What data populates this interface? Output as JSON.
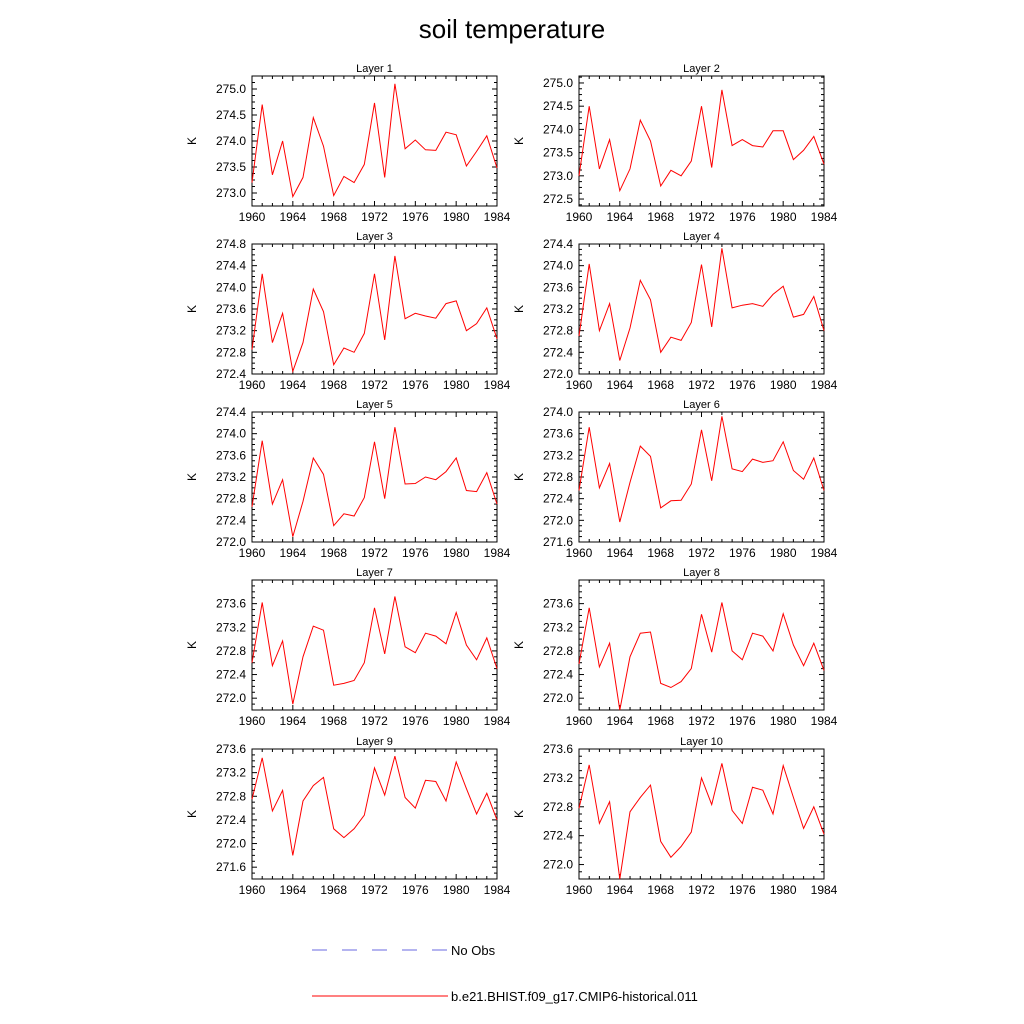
{
  "title": "soil temperature",
  "ylabel": "K",
  "legend": [
    {
      "label": "No Obs",
      "color": "#6a6ae0",
      "style": "dashed"
    },
    {
      "label": "b.e21.BHIST.f09_g17.CMIP6-historical.011",
      "color": "#ff0000",
      "style": "solid"
    }
  ],
  "chart_data": [
    {
      "type": "line",
      "title": "Layer 1",
      "xlim": [
        1960,
        1984
      ],
      "ylim": [
        272.75,
        275.25
      ],
      "xticks": [
        "1960",
        "1964",
        "1968",
        "1972",
        "1976",
        "1980",
        "1984"
      ],
      "yticks": [
        "273.0",
        "273.5",
        "274.0",
        "274.5",
        "275.0"
      ],
      "x": [
        1960,
        1961,
        1962,
        1963,
        1964,
        1965,
        1966,
        1967,
        1968,
        1969,
        1970,
        1971,
        1972,
        1973,
        1974,
        1975,
        1976,
        1977,
        1978,
        1979,
        1980,
        1981,
        1982,
        1983,
        1984
      ],
      "series": [
        {
          "name": "b.e21.BHIST.f09_g17.CMIP6-historical.011",
          "values": [
            273.2,
            274.7,
            273.35,
            274.0,
            272.93,
            273.3,
            274.45,
            273.9,
            272.95,
            273.32,
            273.2,
            273.55,
            274.73,
            273.3,
            275.1,
            273.85,
            274.02,
            273.83,
            273.82,
            274.17,
            274.12,
            273.52,
            273.8,
            274.1,
            273.48
          ]
        }
      ]
    },
    {
      "type": "line",
      "title": "Layer 2",
      "xlim": [
        1960,
        1984
      ],
      "ylim": [
        272.35,
        275.15
      ],
      "xticks": [
        "1960",
        "1964",
        "1968",
        "1972",
        "1976",
        "1980",
        "1984"
      ],
      "yticks": [
        "272.5",
        "273.0",
        "273.5",
        "274.0",
        "274.5",
        "275.0"
      ],
      "x": [
        1960,
        1961,
        1962,
        1963,
        1964,
        1965,
        1966,
        1967,
        1968,
        1969,
        1970,
        1971,
        1972,
        1973,
        1974,
        1975,
        1976,
        1977,
        1978,
        1979,
        1980,
        1981,
        1982,
        1983,
        1984
      ],
      "series": [
        {
          "name": "b.e21.BHIST.f09_g17.CMIP6-historical.011",
          "values": [
            273.0,
            274.5,
            273.15,
            273.78,
            272.68,
            273.15,
            274.2,
            273.75,
            272.78,
            273.12,
            273.0,
            273.32,
            274.5,
            273.18,
            274.85,
            273.65,
            273.78,
            273.65,
            273.62,
            273.97,
            273.97,
            273.35,
            273.55,
            273.85,
            273.25
          ]
        }
      ]
    },
    {
      "type": "line",
      "title": "Layer 3",
      "xlim": [
        1960,
        1984
      ],
      "ylim": [
        272.4,
        274.8
      ],
      "xticks": [
        "1960",
        "1964",
        "1968",
        "1972",
        "1976",
        "1980",
        "1984"
      ],
      "yticks": [
        "272.4",
        "272.8",
        "273.2",
        "273.6",
        "274.0",
        "274.4",
        "274.8"
      ],
      "x": [
        1960,
        1961,
        1962,
        1963,
        1964,
        1965,
        1966,
        1967,
        1968,
        1969,
        1970,
        1971,
        1972,
        1973,
        1974,
        1975,
        1976,
        1977,
        1978,
        1979,
        1980,
        1981,
        1982,
        1983,
        1984
      ],
      "series": [
        {
          "name": "b.e21.BHIST.f09_g17.CMIP6-historical.011",
          "values": [
            272.85,
            274.25,
            272.98,
            273.52,
            272.45,
            272.98,
            273.97,
            273.55,
            272.57,
            272.88,
            272.8,
            273.15,
            274.25,
            273.03,
            274.58,
            273.42,
            273.52,
            273.47,
            273.43,
            273.7,
            273.75,
            273.2,
            273.33,
            273.62,
            273.05
          ]
        }
      ]
    },
    {
      "type": "line",
      "title": "Layer 4",
      "xlim": [
        1960,
        1984
      ],
      "ylim": [
        272.0,
        274.4
      ],
      "xticks": [
        "1960",
        "1964",
        "1968",
        "1972",
        "1976",
        "1980",
        "1984"
      ],
      "yticks": [
        "272.0",
        "272.4",
        "272.8",
        "273.2",
        "273.6",
        "274.0",
        "274.4"
      ],
      "x": [
        1960,
        1961,
        1962,
        1963,
        1964,
        1965,
        1966,
        1967,
        1968,
        1969,
        1970,
        1971,
        1972,
        1973,
        1974,
        1975,
        1976,
        1977,
        1978,
        1979,
        1980,
        1981,
        1982,
        1983,
        1984
      ],
      "series": [
        {
          "name": "b.e21.BHIST.f09_g17.CMIP6-historical.011",
          "values": [
            272.7,
            274.03,
            272.8,
            273.3,
            272.25,
            272.85,
            273.73,
            273.37,
            272.4,
            272.68,
            272.62,
            272.95,
            274.02,
            272.87,
            274.32,
            273.22,
            273.27,
            273.3,
            273.25,
            273.47,
            273.62,
            273.05,
            273.1,
            273.43,
            272.8
          ]
        }
      ]
    },
    {
      "type": "line",
      "title": "Layer 5",
      "xlim": [
        1960,
        1984
      ],
      "ylim": [
        272.0,
        274.4
      ],
      "xticks": [
        "1960",
        "1964",
        "1968",
        "1972",
        "1976",
        "1980",
        "1984"
      ],
      "yticks": [
        "272.0",
        "272.4",
        "272.8",
        "273.2",
        "273.6",
        "274.0",
        "274.4"
      ],
      "x": [
        1960,
        1961,
        1962,
        1963,
        1964,
        1965,
        1966,
        1967,
        1968,
        1969,
        1970,
        1971,
        1972,
        1973,
        1974,
        1975,
        1976,
        1977,
        1978,
        1979,
        1980,
        1981,
        1982,
        1983,
        1984
      ],
      "series": [
        {
          "name": "b.e21.BHIST.f09_g17.CMIP6-historical.011",
          "values": [
            272.65,
            273.87,
            272.7,
            273.15,
            272.1,
            272.75,
            273.55,
            273.25,
            272.3,
            272.52,
            272.48,
            272.82,
            273.85,
            272.8,
            274.12,
            273.07,
            273.08,
            273.2,
            273.15,
            273.3,
            273.55,
            272.95,
            272.93,
            273.28,
            272.7
          ]
        }
      ]
    },
    {
      "type": "line",
      "title": "Layer 6",
      "xlim": [
        1960,
        1984
      ],
      "ylim": [
        271.6,
        274.0
      ],
      "xticks": [
        "1960",
        "1964",
        "1968",
        "1972",
        "1976",
        "1980",
        "1984"
      ],
      "yticks": [
        "271.6",
        "272.0",
        "272.4",
        "272.8",
        "273.2",
        "273.6",
        "274.0"
      ],
      "x": [
        1960,
        1961,
        1962,
        1963,
        1964,
        1965,
        1966,
        1967,
        1968,
        1969,
        1970,
        1971,
        1972,
        1973,
        1974,
        1975,
        1976,
        1977,
        1978,
        1979,
        1980,
        1981,
        1982,
        1983,
        1984
      ],
      "series": [
        {
          "name": "b.e21.BHIST.f09_g17.CMIP6-historical.011",
          "values": [
            272.55,
            273.72,
            272.6,
            273.05,
            271.97,
            272.7,
            273.37,
            273.18,
            272.23,
            272.36,
            272.37,
            272.67,
            273.67,
            272.73,
            273.92,
            272.95,
            272.9,
            273.13,
            273.07,
            273.1,
            273.45,
            272.92,
            272.76,
            273.15,
            272.55
          ]
        }
      ]
    },
    {
      "type": "line",
      "title": "Layer 7",
      "xlim": [
        1960,
        1984
      ],
      "ylim": [
        271.8,
        274.0
      ],
      "xticks": [
        "1960",
        "1964",
        "1968",
        "1972",
        "1976",
        "1980",
        "1984"
      ],
      "yticks": [
        "272.0",
        "272.4",
        "272.8",
        "273.2",
        "273.6"
      ],
      "x": [
        1960,
        1961,
        1962,
        1963,
        1964,
        1965,
        1966,
        1967,
        1968,
        1969,
        1970,
        1971,
        1972,
        1973,
        1974,
        1975,
        1976,
        1977,
        1978,
        1979,
        1980,
        1981,
        1982,
        1983,
        1984
      ],
      "series": [
        {
          "name": "b.e21.BHIST.f09_g17.CMIP6-historical.011",
          "values": [
            272.6,
            273.62,
            272.55,
            272.97,
            271.9,
            272.7,
            273.22,
            273.15,
            272.22,
            272.25,
            272.3,
            272.6,
            273.53,
            272.75,
            273.72,
            272.87,
            272.77,
            273.1,
            273.05,
            272.92,
            273.45,
            272.9,
            272.65,
            273.02,
            272.5
          ]
        }
      ]
    },
    {
      "type": "line",
      "title": "Layer 8",
      "xlim": [
        1960,
        1984
      ],
      "ylim": [
        271.8,
        274.0
      ],
      "xticks": [
        "1960",
        "1964",
        "1968",
        "1972",
        "1976",
        "1980",
        "1984"
      ],
      "yticks": [
        "272.0",
        "272.4",
        "272.8",
        "273.2",
        "273.6"
      ],
      "x": [
        1960,
        1961,
        1962,
        1963,
        1964,
        1965,
        1966,
        1967,
        1968,
        1969,
        1970,
        1971,
        1972,
        1973,
        1974,
        1975,
        1976,
        1977,
        1978,
        1979,
        1980,
        1981,
        1982,
        1983,
        1984
      ],
      "series": [
        {
          "name": "b.e21.BHIST.f09_g17.CMIP6-historical.011",
          "values": [
            272.58,
            273.53,
            272.53,
            272.93,
            271.8,
            272.7,
            273.1,
            273.12,
            272.25,
            272.18,
            272.28,
            272.5,
            273.42,
            272.78,
            273.62,
            272.8,
            272.65,
            273.1,
            273.05,
            272.8,
            273.43,
            272.9,
            272.55,
            272.93,
            272.47
          ]
        }
      ]
    },
    {
      "type": "line",
      "title": "Layer 9",
      "xlim": [
        1960,
        1984
      ],
      "ylim": [
        271.4,
        273.6
      ],
      "xticks": [
        "1960",
        "1964",
        "1968",
        "1972",
        "1976",
        "1980",
        "1984"
      ],
      "yticks": [
        "271.6",
        "272.0",
        "272.4",
        "272.8",
        "273.2",
        "273.6"
      ],
      "x": [
        1960,
        1961,
        1962,
        1963,
        1964,
        1965,
        1966,
        1967,
        1968,
        1969,
        1970,
        1971,
        1972,
        1973,
        1974,
        1975,
        1976,
        1977,
        1978,
        1979,
        1980,
        1981,
        1982,
        1983,
        1984
      ],
      "series": [
        {
          "name": "b.e21.BHIST.f09_g17.CMIP6-historical.011",
          "values": [
            272.75,
            273.45,
            272.55,
            272.9,
            271.8,
            272.72,
            272.98,
            273.12,
            272.25,
            272.1,
            272.25,
            272.48,
            273.28,
            272.82,
            273.48,
            272.78,
            272.6,
            273.07,
            273.05,
            272.72,
            273.38,
            272.93,
            272.5,
            272.85,
            272.4
          ]
        }
      ]
    },
    {
      "type": "line",
      "title": "Layer 10",
      "xlim": [
        1960,
        1984
      ],
      "ylim": [
        271.8,
        273.6
      ],
      "xticks": [
        "1960",
        "1964",
        "1968",
        "1972",
        "1976",
        "1980",
        "1984"
      ],
      "yticks": [
        "272.0",
        "272.4",
        "272.8",
        "273.2",
        "273.6"
      ],
      "x": [
        1960,
        1961,
        1962,
        1963,
        1964,
        1965,
        1966,
        1967,
        1968,
        1969,
        1970,
        1971,
        1972,
        1973,
        1974,
        1975,
        1976,
        1977,
        1978,
        1979,
        1980,
        1981,
        1982,
        1983,
        1984
      ],
      "series": [
        {
          "name": "b.e21.BHIST.f09_g17.CMIP6-historical.011",
          "values": [
            272.78,
            273.38,
            272.57,
            272.87,
            271.8,
            272.73,
            272.93,
            273.1,
            272.32,
            272.1,
            272.25,
            272.45,
            273.2,
            272.83,
            273.4,
            272.75,
            272.57,
            273.07,
            273.03,
            272.7,
            273.37,
            272.93,
            272.5,
            272.8,
            272.42
          ]
        }
      ]
    }
  ]
}
